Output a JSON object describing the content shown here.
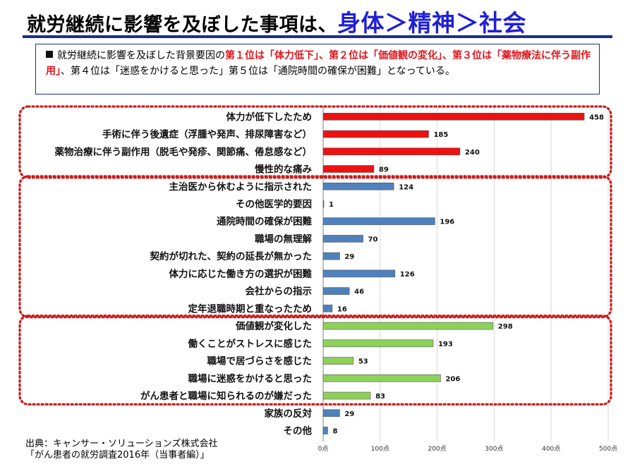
{
  "header": {
    "title_main": "就労継続に影響を及ぼした事項は、",
    "title_highlight": "身体＞精神＞社会"
  },
  "summary": {
    "bullet_icon": "black-square",
    "text_1": "就労継続に影響を及ぼした背景要因の",
    "emph_1": "第１位は「体力低下」、第２位は「価値観の変化」、第３位は「薬物療法に伴う副作用」",
    "text_2": "、第４位は「迷惑をかけると思った」第５位は「通院時間の確保が困難」となっている。"
  },
  "source": {
    "line1": "出典：キャンサー・ソリューションズ株式会社",
    "line2": "「がん患者の就労調査2016年（当事者編）」"
  },
  "colors": {
    "red": "#ee1111",
    "blue": "#4f81bd",
    "green": "#8ed15a",
    "outline": "#cc1a1a",
    "title_blue": "#1f1fd6"
  },
  "chart_data": {
    "type": "bar",
    "orientation": "horizontal",
    "title": "",
    "xlabel": "",
    "ylabel": "",
    "xlim": [
      0,
      500
    ],
    "tick_values": [
      0,
      100,
      200,
      300,
      400,
      500
    ],
    "tick_labels": [
      "0点",
      "100点",
      "200点",
      "300点",
      "400点",
      "500点"
    ],
    "grid": true,
    "categories": [
      "体力が低下したため",
      "手術に伴う後遺症（浮腫や発声、排尿障害など）",
      "薬物治療に伴う副作用（脱毛や発疹、関節痛、倦怠感など）",
      "慢性的な痛み",
      "主治医から休むように指示された",
      "その他医学的要因",
      "通院時間の確保が困難",
      "職場の無理解",
      "契約が切れた、契約の延長が無かった",
      "体力に応じた働き方の選択が困難",
      "会社からの指示",
      "定年退職時期と重なったため",
      "価値観が変化した",
      "働くことがストレスに感じた",
      "職場で居づらさを感じた",
      "職場に迷惑をかけると思った",
      "がん患者と職場に知られるのが嫌だった",
      "家族の反対",
      "その他"
    ],
    "values": [
      458,
      185,
      240,
      89,
      124,
      1,
      196,
      70,
      29,
      126,
      46,
      16,
      298,
      193,
      53,
      206,
      83,
      29,
      8
    ],
    "bar_colors": [
      "red",
      "red",
      "red",
      "red",
      "blue",
      "blue",
      "blue",
      "blue",
      "blue",
      "blue",
      "blue",
      "blue",
      "green",
      "green",
      "green",
      "green",
      "green",
      "blue",
      "blue"
    ],
    "groups": [
      {
        "start": 0,
        "end": 3
      },
      {
        "start": 4,
        "end": 11
      },
      {
        "start": 12,
        "end": 16
      }
    ]
  }
}
